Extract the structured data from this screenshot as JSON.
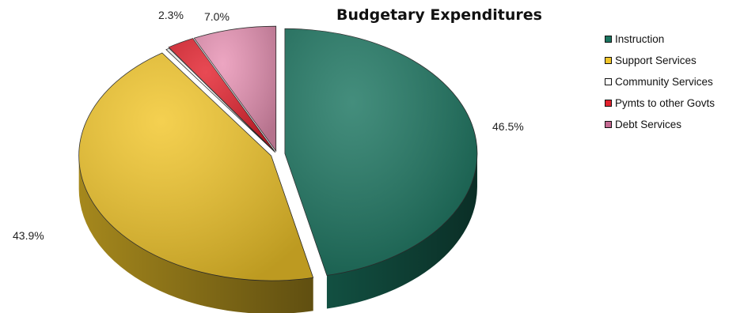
{
  "chart_data": {
    "type": "pie",
    "style": "3d-exploded",
    "title": "Budgetary Expenditures",
    "legend_position": "right",
    "slices": [
      {
        "name": "Instruction",
        "value": 46.5,
        "label": "46.5%",
        "color": "#1b7560"
      },
      {
        "name": "Support Services",
        "value": 43.9,
        "label": "43.9%",
        "color": "#f2c62a"
      },
      {
        "name": "Community Services",
        "value": 0.3,
        "label": "",
        "color": "#ffffff"
      },
      {
        "name": "Pymts to other Govts",
        "value": 2.3,
        "label": "2.3%",
        "color": "#e3222e"
      },
      {
        "name": "Debt Services",
        "value": 7.0,
        "label": "7.0%",
        "color": "#e892b4"
      }
    ]
  }
}
